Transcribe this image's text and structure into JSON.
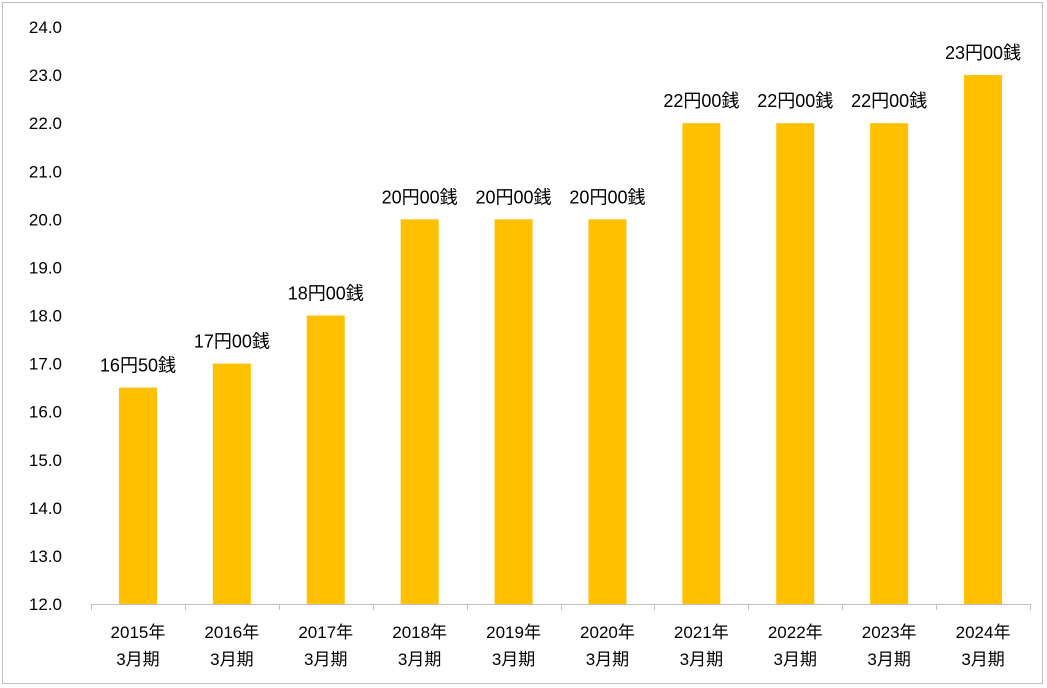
{
  "chart_data": {
    "type": "bar",
    "categories": [
      [
        "2015年",
        "3月期"
      ],
      [
        "2016年",
        "3月期"
      ],
      [
        "2017年",
        "3月期"
      ],
      [
        "2018年",
        "3月期"
      ],
      [
        "2019年",
        "3月期"
      ],
      [
        "2020年",
        "3月期"
      ],
      [
        "2021年",
        "3月期"
      ],
      [
        "2022年",
        "3月期"
      ],
      [
        "2023年",
        "3月期"
      ],
      [
        "2024年",
        "3月期"
      ]
    ],
    "values": [
      16.5,
      17.0,
      18.0,
      20.0,
      20.0,
      20.0,
      22.0,
      22.0,
      22.0,
      23.0
    ],
    "data_labels": [
      "16円50銭",
      "17円00銭",
      "18円00銭",
      "20円00銭",
      "20円00銭",
      "20円00銭",
      "22円00銭",
      "22円00銭",
      "22円00銭",
      "23円00銭"
    ],
    "ylim": [
      12.0,
      24.0
    ],
    "yticks": [
      "12.0",
      "13.0",
      "14.0",
      "15.0",
      "16.0",
      "17.0",
      "18.0",
      "19.0",
      "20.0",
      "21.0",
      "22.0",
      "23.0",
      "24.0"
    ],
    "bar_color": "#FFC000",
    "grid": false,
    "legend": "none"
  }
}
